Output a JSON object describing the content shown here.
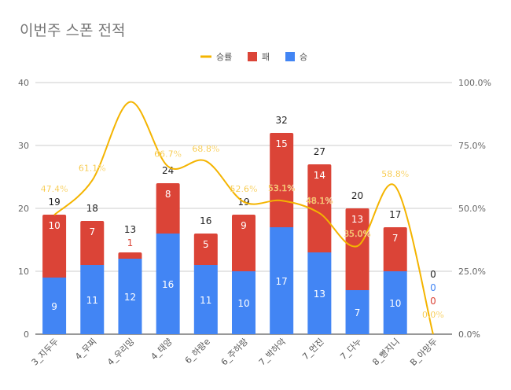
{
  "chart_data": {
    "type": "bar",
    "stacked": true,
    "title": "이번주 스폰 전적",
    "categories": [
      "3_지두두",
      "4_무찌",
      "4_우리밍",
      "4_태양",
      "6_하랑e",
      "6_주하랑",
      "7_박하악",
      "7_먼진",
      "7_다누",
      "8_빵지니",
      "B_아망두"
    ],
    "series": [
      {
        "name": "승",
        "type": "bar",
        "color": "#4285f4",
        "values": [
          9,
          11,
          12,
          16,
          11,
          10,
          17,
          13,
          7,
          10,
          0
        ]
      },
      {
        "name": "패",
        "type": "bar",
        "color": "#db4437",
        "values": [
          10,
          7,
          1,
          8,
          5,
          9,
          15,
          14,
          13,
          7,
          0
        ]
      },
      {
        "name": "승률",
        "type": "line",
        "axis": "right",
        "color": "#f4b400",
        "values": [
          47.4,
          61.1,
          92.3,
          66.7,
          68.8,
          52.6,
          53.1,
          48.1,
          35.0,
          58.8,
          0.0
        ],
        "labels": [
          "47.4%",
          "61.1%",
          "",
          "66.7%",
          "68.8%",
          "52.6%",
          "53.1%",
          "48.1%",
          "35.0%",
          "58.8%",
          "0.0%"
        ]
      }
    ],
    "totals": [
      19,
      18,
      13,
      24,
      16,
      19,
      32,
      27,
      20,
      17,
      0
    ],
    "ylim": [
      0,
      40
    ],
    "yticks": [
      "0",
      "10",
      "20",
      "30",
      "40"
    ],
    "y2lim": [
      0,
      100
    ],
    "y2ticks": [
      "0.0%",
      "25.0%",
      "50.0%",
      "75.0%",
      "100.0%"
    ],
    "grid": true,
    "legend": "top"
  }
}
